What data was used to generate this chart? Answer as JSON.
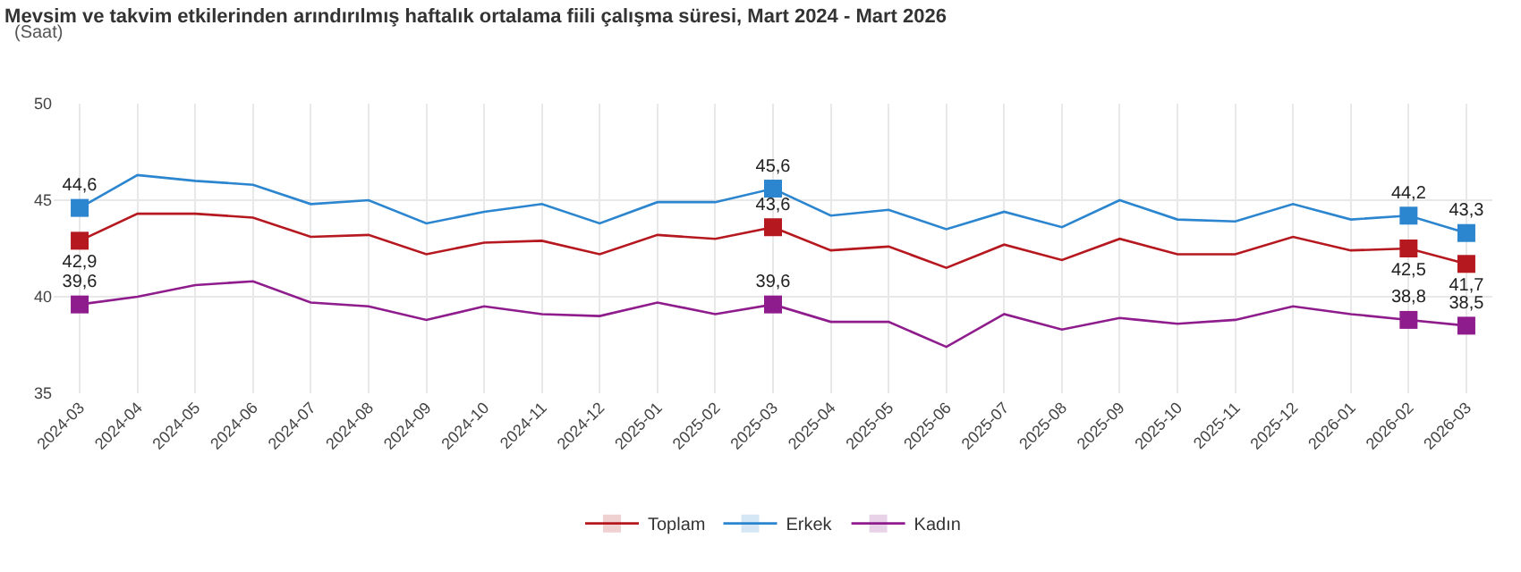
{
  "chart_data": {
    "type": "line",
    "title": "Mevsim ve takvim etkilerinden arındırılmış haftalık ortalama fiili çalışma süresi, Mart 2024 - Mart 2026",
    "subtitle": "(Saat)",
    "categories": [
      "2024-03",
      "2024-04",
      "2024-05",
      "2024-06",
      "2024-07",
      "2024-08",
      "2024-09",
      "2024-10",
      "2024-11",
      "2024-12",
      "2025-01",
      "2025-02",
      "2025-03",
      "2025-04",
      "2025-05",
      "2025-06",
      "2025-07",
      "2025-08",
      "2025-09",
      "2025-10",
      "2025-11",
      "2025-12",
      "2026-01",
      "2026-02",
      "2026-03"
    ],
    "series": [
      {
        "name": "Toplam",
        "color": "#b5181e",
        "values": [
          42.9,
          44.3,
          44.3,
          44.1,
          43.1,
          43.2,
          42.2,
          42.8,
          42.9,
          42.2,
          43.2,
          43.0,
          43.6,
          42.4,
          42.6,
          41.5,
          42.7,
          41.9,
          43.0,
          42.2,
          42.2,
          43.1,
          42.4,
          42.5,
          41.7
        ],
        "value_labels": [
          "42,9",
          null,
          null,
          null,
          null,
          null,
          null,
          null,
          null,
          null,
          null,
          null,
          "43,6",
          null,
          null,
          null,
          null,
          null,
          null,
          null,
          null,
          null,
          null,
          "42,5",
          "41,7"
        ]
      },
      {
        "name": "Erkek",
        "color": "#2b85cf",
        "values": [
          44.6,
          46.3,
          46.0,
          45.8,
          44.8,
          45.0,
          43.8,
          44.4,
          44.8,
          43.8,
          44.9,
          44.9,
          45.6,
          44.2,
          44.5,
          43.5,
          44.4,
          43.6,
          45.0,
          44.0,
          43.9,
          44.8,
          44.0,
          44.2,
          43.3
        ],
        "value_labels": [
          "44,6",
          null,
          null,
          null,
          null,
          null,
          null,
          null,
          null,
          null,
          null,
          null,
          "45,6",
          null,
          null,
          null,
          null,
          null,
          null,
          null,
          null,
          null,
          null,
          "44,2",
          "43,3"
        ]
      },
      {
        "name": "Kadın",
        "color": "#8e1c8c",
        "values": [
          39.6,
          40.0,
          40.6,
          40.8,
          39.7,
          39.5,
          38.8,
          39.5,
          39.1,
          39.0,
          39.7,
          39.1,
          39.6,
          38.7,
          38.7,
          37.4,
          39.1,
          38.3,
          38.9,
          38.6,
          38.8,
          39.5,
          39.1,
          38.8,
          38.5
        ],
        "value_labels": [
          "39,6",
          null,
          null,
          null,
          null,
          null,
          null,
          null,
          null,
          null,
          null,
          null,
          "39,6",
          null,
          null,
          null,
          null,
          null,
          null,
          null,
          null,
          null,
          null,
          "38,8",
          "38,5"
        ]
      }
    ],
    "ylim": [
      35,
      50
    ],
    "yticks": [
      35,
      40,
      45,
      50
    ],
    "grid": true,
    "legend": "bottom",
    "line_style": "solid"
  }
}
